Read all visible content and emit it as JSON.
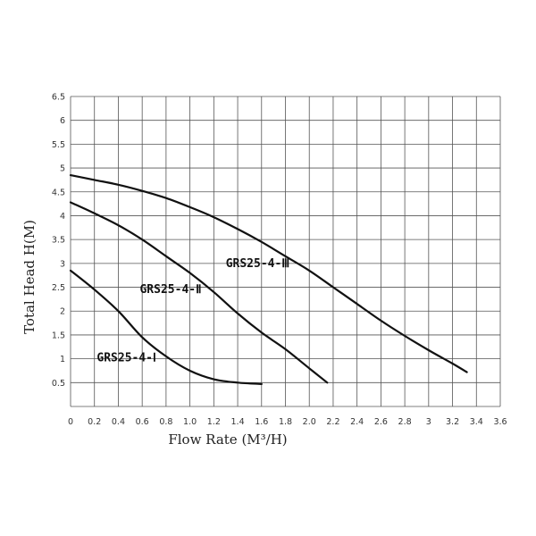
{
  "chart_data": {
    "type": "line",
    "title": "",
    "xlabel": "Flow Rate (M³/H)",
    "ylabel": "Total Head H(M)",
    "xlim": [
      0,
      3.6
    ],
    "ylim": [
      0,
      6.5
    ],
    "x_ticks": [
      "0",
      "0.2",
      "0.4",
      "0.6",
      "0.8",
      "1.0",
      "1.2",
      "1.4",
      "1.6",
      "1.8",
      "2.0",
      "2.2",
      "2.4",
      "2.6",
      "2.8",
      "3",
      "3.2",
      "3.4",
      "3.6"
    ],
    "y_ticks": [
      "0.5",
      "1",
      "1.5",
      "2",
      "2.5",
      "3",
      "3.5",
      "4",
      "4.5",
      "5",
      "5.5",
      "6",
      "6.5"
    ],
    "grid": true,
    "series": [
      {
        "name": "GRS25-4-Ⅰ",
        "x": [
          0,
          0.2,
          0.4,
          0.6,
          0.8,
          1.0,
          1.2,
          1.4,
          1.6
        ],
        "y": [
          2.85,
          2.45,
          2.0,
          1.45,
          1.05,
          0.75,
          0.57,
          0.5,
          0.47
        ]
      },
      {
        "name": "GRS25-4-Ⅱ",
        "x": [
          0,
          0.2,
          0.4,
          0.6,
          0.8,
          1.0,
          1.2,
          1.4,
          1.6,
          1.8,
          2.0,
          2.15
        ],
        "y": [
          4.28,
          4.05,
          3.8,
          3.5,
          3.15,
          2.8,
          2.4,
          1.95,
          1.55,
          1.2,
          0.8,
          0.5
        ]
      },
      {
        "name": "GRS25-4-Ⅲ",
        "x": [
          0,
          0.2,
          0.4,
          0.6,
          0.8,
          1.0,
          1.2,
          1.4,
          1.6,
          1.8,
          2.0,
          2.2,
          2.4,
          2.6,
          2.8,
          3.0,
          3.2,
          3.32
        ],
        "y": [
          4.85,
          4.75,
          4.65,
          4.52,
          4.37,
          4.18,
          3.97,
          3.72,
          3.45,
          3.15,
          2.85,
          2.5,
          2.15,
          1.8,
          1.48,
          1.18,
          0.9,
          0.72
        ]
      }
    ]
  }
}
